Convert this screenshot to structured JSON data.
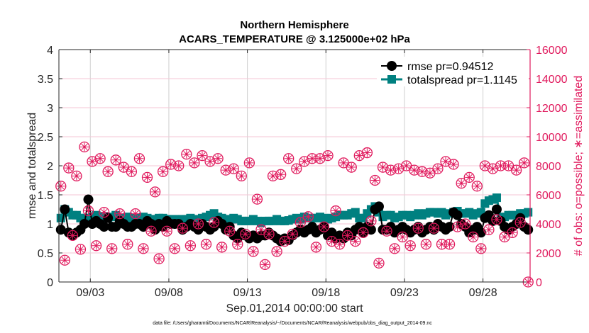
{
  "chart_data": {
    "type": "line",
    "title_line1": "Northern Hemisphere",
    "title_line2": "ACARS_TEMPERATURE @ 3.125000e+02 hPa",
    "xlabel": "Sep.01,2014 00:00:00 start",
    "ylabel_left": "rmse and totalspread",
    "ylabel_right": "# of obs: o=possible; ∗=assimilated",
    "footnote": "data file: /Users/gharamti/Documents/NCAR/Reanalysis/~/Documents/NCAR/Reanalysis/webpub/obs_diag_output_2014-09.nc",
    "x_unit": "days since Sep.01,2014 00:00",
    "xlim": [
      0,
      30
    ],
    "x_step": 0.25,
    "x_ticks": [
      {
        "value": 2,
        "label": "09/03"
      },
      {
        "value": 7,
        "label": "09/08"
      },
      {
        "value": 12,
        "label": "09/13"
      },
      {
        "value": 17,
        "label": "09/18"
      },
      {
        "value": 22,
        "label": "09/23"
      },
      {
        "value": 27,
        "label": "09/28"
      }
    ],
    "ylim_left": [
      0,
      4
    ],
    "y_ticks_left": [
      "0",
      "0.5",
      "1",
      "1.5",
      "2",
      "2.5",
      "3",
      "3.5",
      "4"
    ],
    "ylim_right": [
      0,
      16000
    ],
    "y_ticks_right": [
      "0",
      "2000",
      "4000",
      "6000",
      "8000",
      "10000",
      "12000",
      "14000",
      "16000"
    ],
    "grid": true,
    "legend_placement": "top-right",
    "colors": {
      "rmse": "#000000",
      "totalspread": "#008080",
      "obs": "#e0185c"
    },
    "series": [
      {
        "name": "rmse pr=0.94512",
        "key": "rmse",
        "marker": "circle",
        "values": [
          0.9,
          1.25,
          0.85,
          0.8,
          0.85,
          0.9,
          1.0,
          1.42,
          1.0,
          1.05,
          1.0,
          0.95,
          1.1,
          0.95,
          0.95,
          1.05,
          1.0,
          0.95,
          0.95,
          1.0,
          1.0,
          0.95,
          1.05,
          1.0,
          0.9,
          1.0,
          0.95,
          1.05,
          1.0,
          1.0,
          1.0,
          0.9,
          0.95,
          1.0,
          0.95,
          0.9,
          1.0,
          0.95,
          0.9,
          0.95,
          1.05,
          1.0,
          0.9,
          0.95,
          0.8,
          0.75,
          0.85,
          0.8,
          0.75,
          0.8,
          0.75,
          0.8,
          0.8,
          0.85,
          0.8,
          0.75,
          0.7,
          0.75,
          0.72,
          0.8,
          0.85,
          0.9,
          0.85,
          0.9,
          0.95,
          0.85,
          0.9,
          0.95,
          0.8,
          0.85,
          0.75,
          0.8,
          0.75,
          0.85,
          0.8,
          0.9,
          0.95,
          0.85,
          0.95,
          0.9,
          1.25,
          1.3,
          0.9,
          0.9,
          0.95,
          0.85,
          0.9,
          0.95,
          0.9,
          0.85,
          0.9,
          0.95,
          0.85,
          0.9,
          0.95,
          0.9,
          1.0,
          0.95,
          0.9,
          0.95,
          1.2,
          1.15,
          1.0,
          0.95,
          0.85,
          0.9,
          0.95,
          0.85,
          1.1,
          1.15,
          1.05,
          1.25,
          1.05,
          0.95,
          0.9,
          0.95,
          1.0,
          1.1,
          0.95,
          0.9
        ]
      },
      {
        "name": "totalspread pr=1.1145",
        "key": "totalspread",
        "marker": "square",
        "values": [
          1.1,
          1.25,
          1.2,
          1.15,
          1.15,
          1.1,
          1.1,
          1.1,
          1.12,
          1.15,
          1.12,
          1.12,
          1.1,
          1.12,
          1.15,
          1.1,
          1.08,
          1.12,
          1.1,
          1.1,
          1.1,
          1.12,
          1.1,
          1.08,
          1.08,
          1.1,
          1.1,
          1.08,
          1.05,
          1.08,
          1.06,
          1.08,
          1.08,
          1.1,
          1.08,
          1.06,
          1.1,
          1.12,
          1.15,
          1.18,
          1.12,
          1.1,
          1.08,
          1.08,
          1.1,
          1.08,
          1.05,
          1.05,
          1.05,
          1.08,
          1.05,
          1.02,
          1.05,
          1.05,
          1.05,
          1.08,
          1.05,
          1.05,
          1.06,
          1.08,
          1.1,
          1.08,
          1.12,
          1.1,
          1.1,
          1.1,
          1.12,
          1.1,
          1.08,
          1.1,
          1.12,
          1.15,
          1.15,
          1.15,
          1.18,
          1.2,
          1.1,
          1.1,
          1.18,
          1.25,
          1.3,
          1.2,
          1.12,
          1.15,
          1.15,
          1.1,
          1.12,
          1.15,
          1.15,
          1.12,
          1.15,
          1.18,
          1.15,
          1.18,
          1.2,
          1.2,
          1.18,
          1.2,
          1.15,
          1.18,
          1.2,
          1.22,
          1.18,
          1.18,
          1.2,
          1.15,
          1.18,
          1.2,
          1.35,
          1.4,
          1.42,
          1.45,
          1.1,
          1.12,
          1.15,
          1.15,
          1.15,
          1.18,
          1.18,
          1.2
        ]
      },
      {
        "name": "obs possible/assimilated",
        "key": "obs",
        "axis": "right",
        "marker": "circle-star",
        "values": [
          6600,
          1500,
          7850,
          3200,
          7300,
          2250,
          9300,
          4900,
          8300,
          2500,
          8500,
          4800,
          7600,
          2300,
          8400,
          4700,
          7900,
          2600,
          7600,
          4700,
          8500,
          2300,
          7200,
          3500,
          6200,
          1600,
          7600,
          3500,
          8100,
          2300,
          8000,
          3700,
          8800,
          2500,
          8200,
          4000,
          8700,
          2600,
          8300,
          4100,
          8500,
          2400,
          7700,
          3500,
          7800,
          2600,
          7300,
          3300,
          8200,
          2100,
          5700,
          3600,
          1200,
          3300,
          7300,
          2100,
          7400,
          2800,
          8500,
          3300,
          7800,
          4100,
          8300,
          4500,
          8500,
          2400,
          8500,
          3800,
          8700,
          2800,
          4900,
          2600,
          8200,
          3200,
          7900,
          2800,
          8700,
          3400,
          8900,
          4200,
          7000,
          1300,
          7900,
          3500,
          7700,
          2300,
          7800,
          3100,
          8000,
          2500,
          7700,
          3700,
          7600,
          2600,
          7500,
          3700,
          7800,
          2600,
          8300,
          2600,
          8100,
          3800,
          6800,
          4000,
          7200,
          3100,
          6600,
          2300,
          8000,
          3600,
          7800,
          4300,
          8000,
          3100,
          8000,
          3400,
          7700,
          4100,
          8200,
          0
        ]
      }
    ],
    "legend": [
      "rmse pr=0.94512",
      "totalspread pr=1.1145"
    ]
  }
}
